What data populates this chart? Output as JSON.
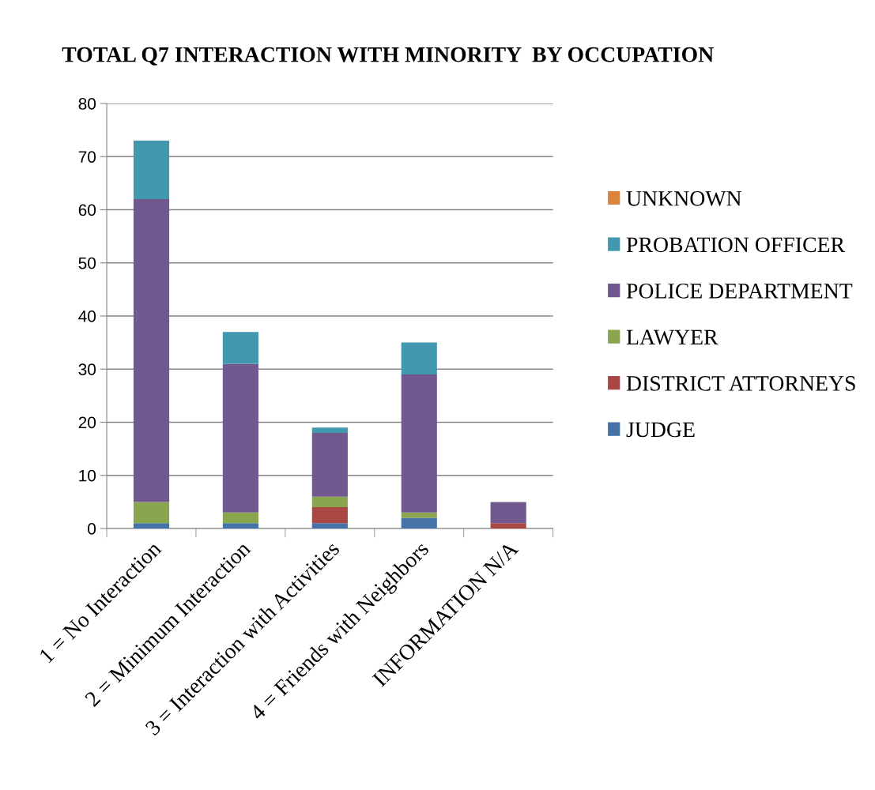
{
  "chart_data": {
    "type": "bar",
    "title": "TOTAL Q7 INTERACTION WITH MINORITY  BY OCCUPATION",
    "stacked": true,
    "categories": [
      "1 = No Interaction",
      "2 = Minimum Interaction",
      "3 = Interaction with Activities",
      "4 = Friends with Neighbors",
      "INFORMATION N/A"
    ],
    "series": [
      {
        "name": "JUDGE",
        "color": "#4572a7",
        "values": [
          1,
          1,
          1,
          2,
          0
        ]
      },
      {
        "name": "DISTRICT ATTORNEYS",
        "color": "#aa4643",
        "values": [
          0,
          0,
          3,
          0,
          1
        ]
      },
      {
        "name": "LAWYER",
        "color": "#89a54e",
        "values": [
          4,
          2,
          2,
          1,
          0
        ]
      },
      {
        "name": "POLICE DEPARTMENT",
        "color": "#71588f",
        "values": [
          57,
          28,
          12,
          26,
          4
        ]
      },
      {
        "name": "PROBATION OFFICER",
        "color": "#4198af",
        "values": [
          11,
          6,
          1,
          6,
          0
        ]
      },
      {
        "name": "UNKNOWN",
        "color": "#db843d",
        "values": [
          0,
          0,
          0,
          0,
          0
        ]
      }
    ],
    "ylim": [
      0,
      80
    ],
    "yticks": [
      0,
      10,
      20,
      30,
      40,
      50,
      60,
      70,
      80
    ],
    "grid": "y",
    "legend": "right"
  }
}
